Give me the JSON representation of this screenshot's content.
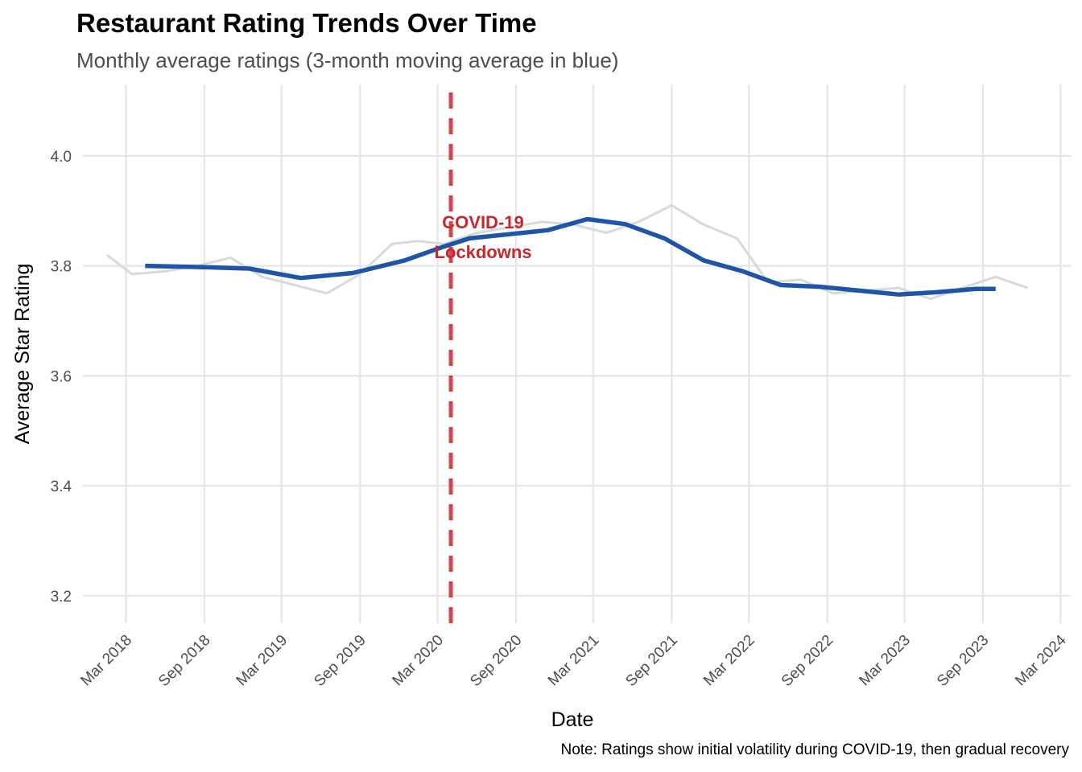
{
  "chart_data": {
    "type": "line",
    "title": "Restaurant Rating Trends Over Time",
    "subtitle": "Monthly average ratings (3-month moving average in blue)",
    "xlabel": "Date",
    "ylabel": "Average Star Rating",
    "caption": "Note: Ratings show initial volatility during COVID-19, then gradual recovery",
    "ylim": [
      3.15,
      4.13
    ],
    "xlim": [
      "2017-11-20",
      "2024-03-25"
    ],
    "y_ticks": [
      3.2,
      3.4,
      3.6,
      3.8,
      4.0
    ],
    "y_tick_labels": [
      "3.2",
      "3.4",
      "3.6",
      "3.8",
      "4.0"
    ],
    "x_ticks": [
      "2018-03-01",
      "2018-09-01",
      "2019-03-01",
      "2019-09-01",
      "2020-03-01",
      "2020-09-01",
      "2021-03-01",
      "2021-09-01",
      "2022-03-01",
      "2022-09-01",
      "2023-03-01",
      "2023-09-01",
      "2024-03-01"
    ],
    "x_tick_labels": [
      "Mar 2018",
      "Sep 2018",
      "Mar 2019",
      "Sep 2019",
      "Mar 2020",
      "Sep 2020",
      "Mar 2021",
      "Sep 2021",
      "Mar 2022",
      "Sep 2022",
      "Mar 2023",
      "Sep 2023",
      "Mar 2024"
    ],
    "grid": true,
    "series": [
      {
        "color": "#d9d9d9",
        "x": [
          "2018-01-15",
          "2018-03-15",
          "2018-06-01",
          "2018-08-15",
          "2018-11-01",
          "2019-01-15",
          "2019-04-01",
          "2019-06-15",
          "2019-09-01",
          "2019-11-15",
          "2020-01-15",
          "2020-03-15",
          "2020-06-01",
          "2020-08-15",
          "2020-11-01",
          "2021-01-15",
          "2021-04-01",
          "2021-06-15",
          "2021-09-01",
          "2021-11-15",
          "2022-02-01",
          "2022-04-15",
          "2022-07-01",
          "2022-09-15",
          "2022-12-01",
          "2023-02-15",
          "2023-05-01",
          "2023-07-15",
          "2023-10-01",
          "2023-12-15"
        ],
        "y": [
          3.82,
          3.785,
          3.79,
          3.8,
          3.815,
          3.78,
          3.765,
          3.75,
          3.785,
          3.84,
          3.845,
          3.84,
          3.86,
          3.87,
          3.88,
          3.875,
          3.86,
          3.88,
          3.91,
          3.875,
          3.85,
          3.77,
          3.775,
          3.75,
          3.755,
          3.76,
          3.74,
          3.76,
          3.78,
          3.76
        ]
      },
      {
        "color": "#1f55a6",
        "x": [
          "2018-04-15",
          "2018-08-15",
          "2018-12-15",
          "2019-04-15",
          "2019-08-15",
          "2019-12-15",
          "2020-03-15",
          "2020-05-15",
          "2020-07-15",
          "2020-09-15",
          "2020-11-15",
          "2021-02-15",
          "2021-05-15",
          "2021-08-15",
          "2021-11-15",
          "2022-02-15",
          "2022-05-15",
          "2022-08-15",
          "2022-11-15",
          "2023-02-15",
          "2023-05-15",
          "2023-08-15",
          "2023-10-01"
        ],
        "y": [
          3.8,
          3.798,
          3.795,
          3.778,
          3.787,
          3.81,
          3.835,
          3.85,
          3.855,
          3.86,
          3.865,
          3.885,
          3.876,
          3.85,
          3.81,
          3.79,
          3.765,
          3.762,
          3.755,
          3.748,
          3.752,
          3.758,
          3.758
        ]
      }
    ],
    "annotation": {
      "x": "2020-04-01",
      "lines": [
        "COVID-19",
        "Lockdowns"
      ],
      "color": "#c8282d"
    }
  }
}
